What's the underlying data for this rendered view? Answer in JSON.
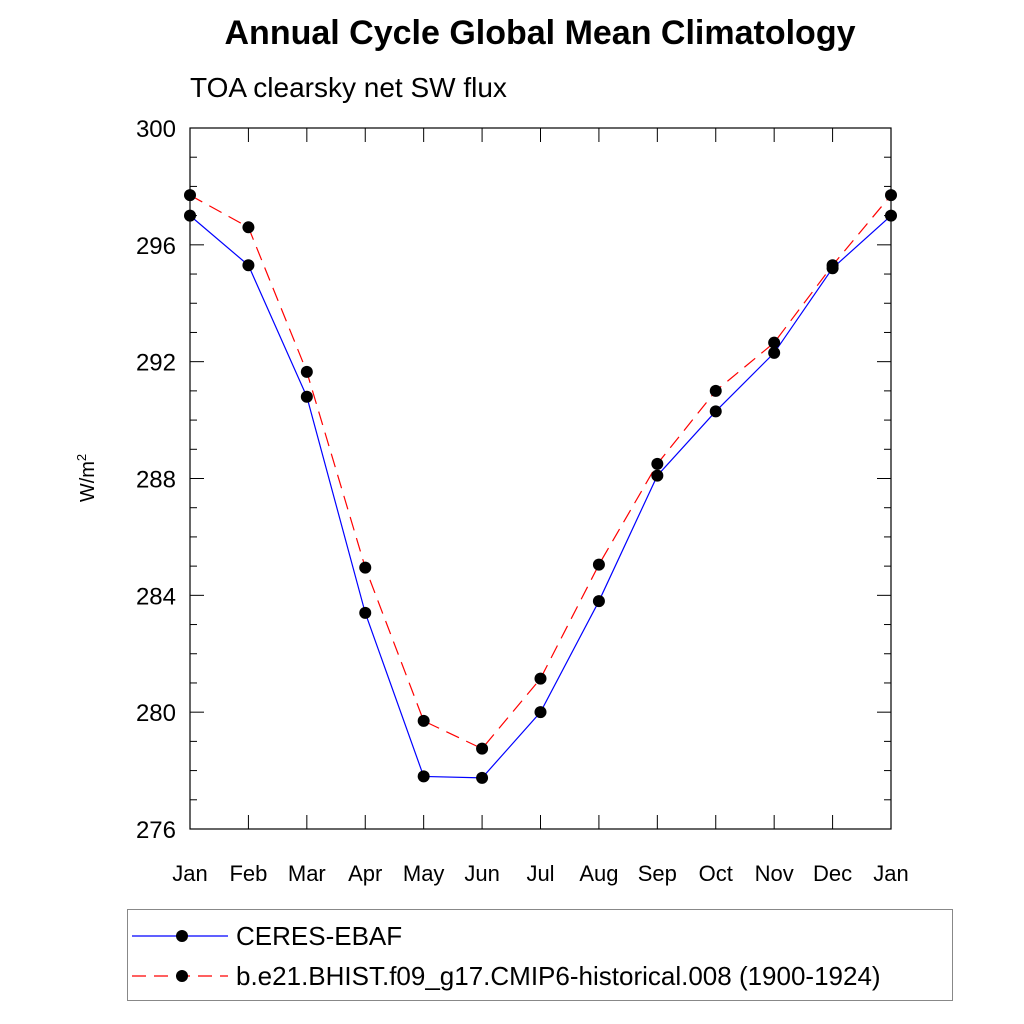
{
  "chart_data": {
    "type": "line",
    "title": "Annual Cycle Global Mean Climatology",
    "subtitle": "TOA clearsky net SW flux",
    "xlabel": "",
    "ylabel": "W/m",
    "ylabel_superscript": "2",
    "categories": [
      "Jan",
      "Feb",
      "Mar",
      "Apr",
      "May",
      "Jun",
      "Jul",
      "Aug",
      "Sep",
      "Oct",
      "Nov",
      "Dec",
      "Jan"
    ],
    "ylim": [
      276,
      300
    ],
    "yticks": [
      276,
      280,
      284,
      288,
      292,
      296,
      300
    ],
    "series": [
      {
        "name": "CERES-EBAF",
        "color": "#0000ff",
        "dash": "solid",
        "values": [
          297.0,
          295.3,
          290.8,
          283.4,
          277.8,
          277.75,
          280.0,
          283.8,
          288.1,
          290.3,
          292.3,
          295.2,
          297.0
        ]
      },
      {
        "name": "b.e21.BHIST.f09_g17.CMIP6-historical.008 (1900-1924)",
        "color": "#ff0000",
        "dash": "dashed",
        "values": [
          297.7,
          296.6,
          291.65,
          284.95,
          279.7,
          278.75,
          281.15,
          285.05,
          288.5,
          291.0,
          292.65,
          295.3,
          297.7
        ]
      }
    ],
    "legend_position": "bottom",
    "grid": false
  }
}
